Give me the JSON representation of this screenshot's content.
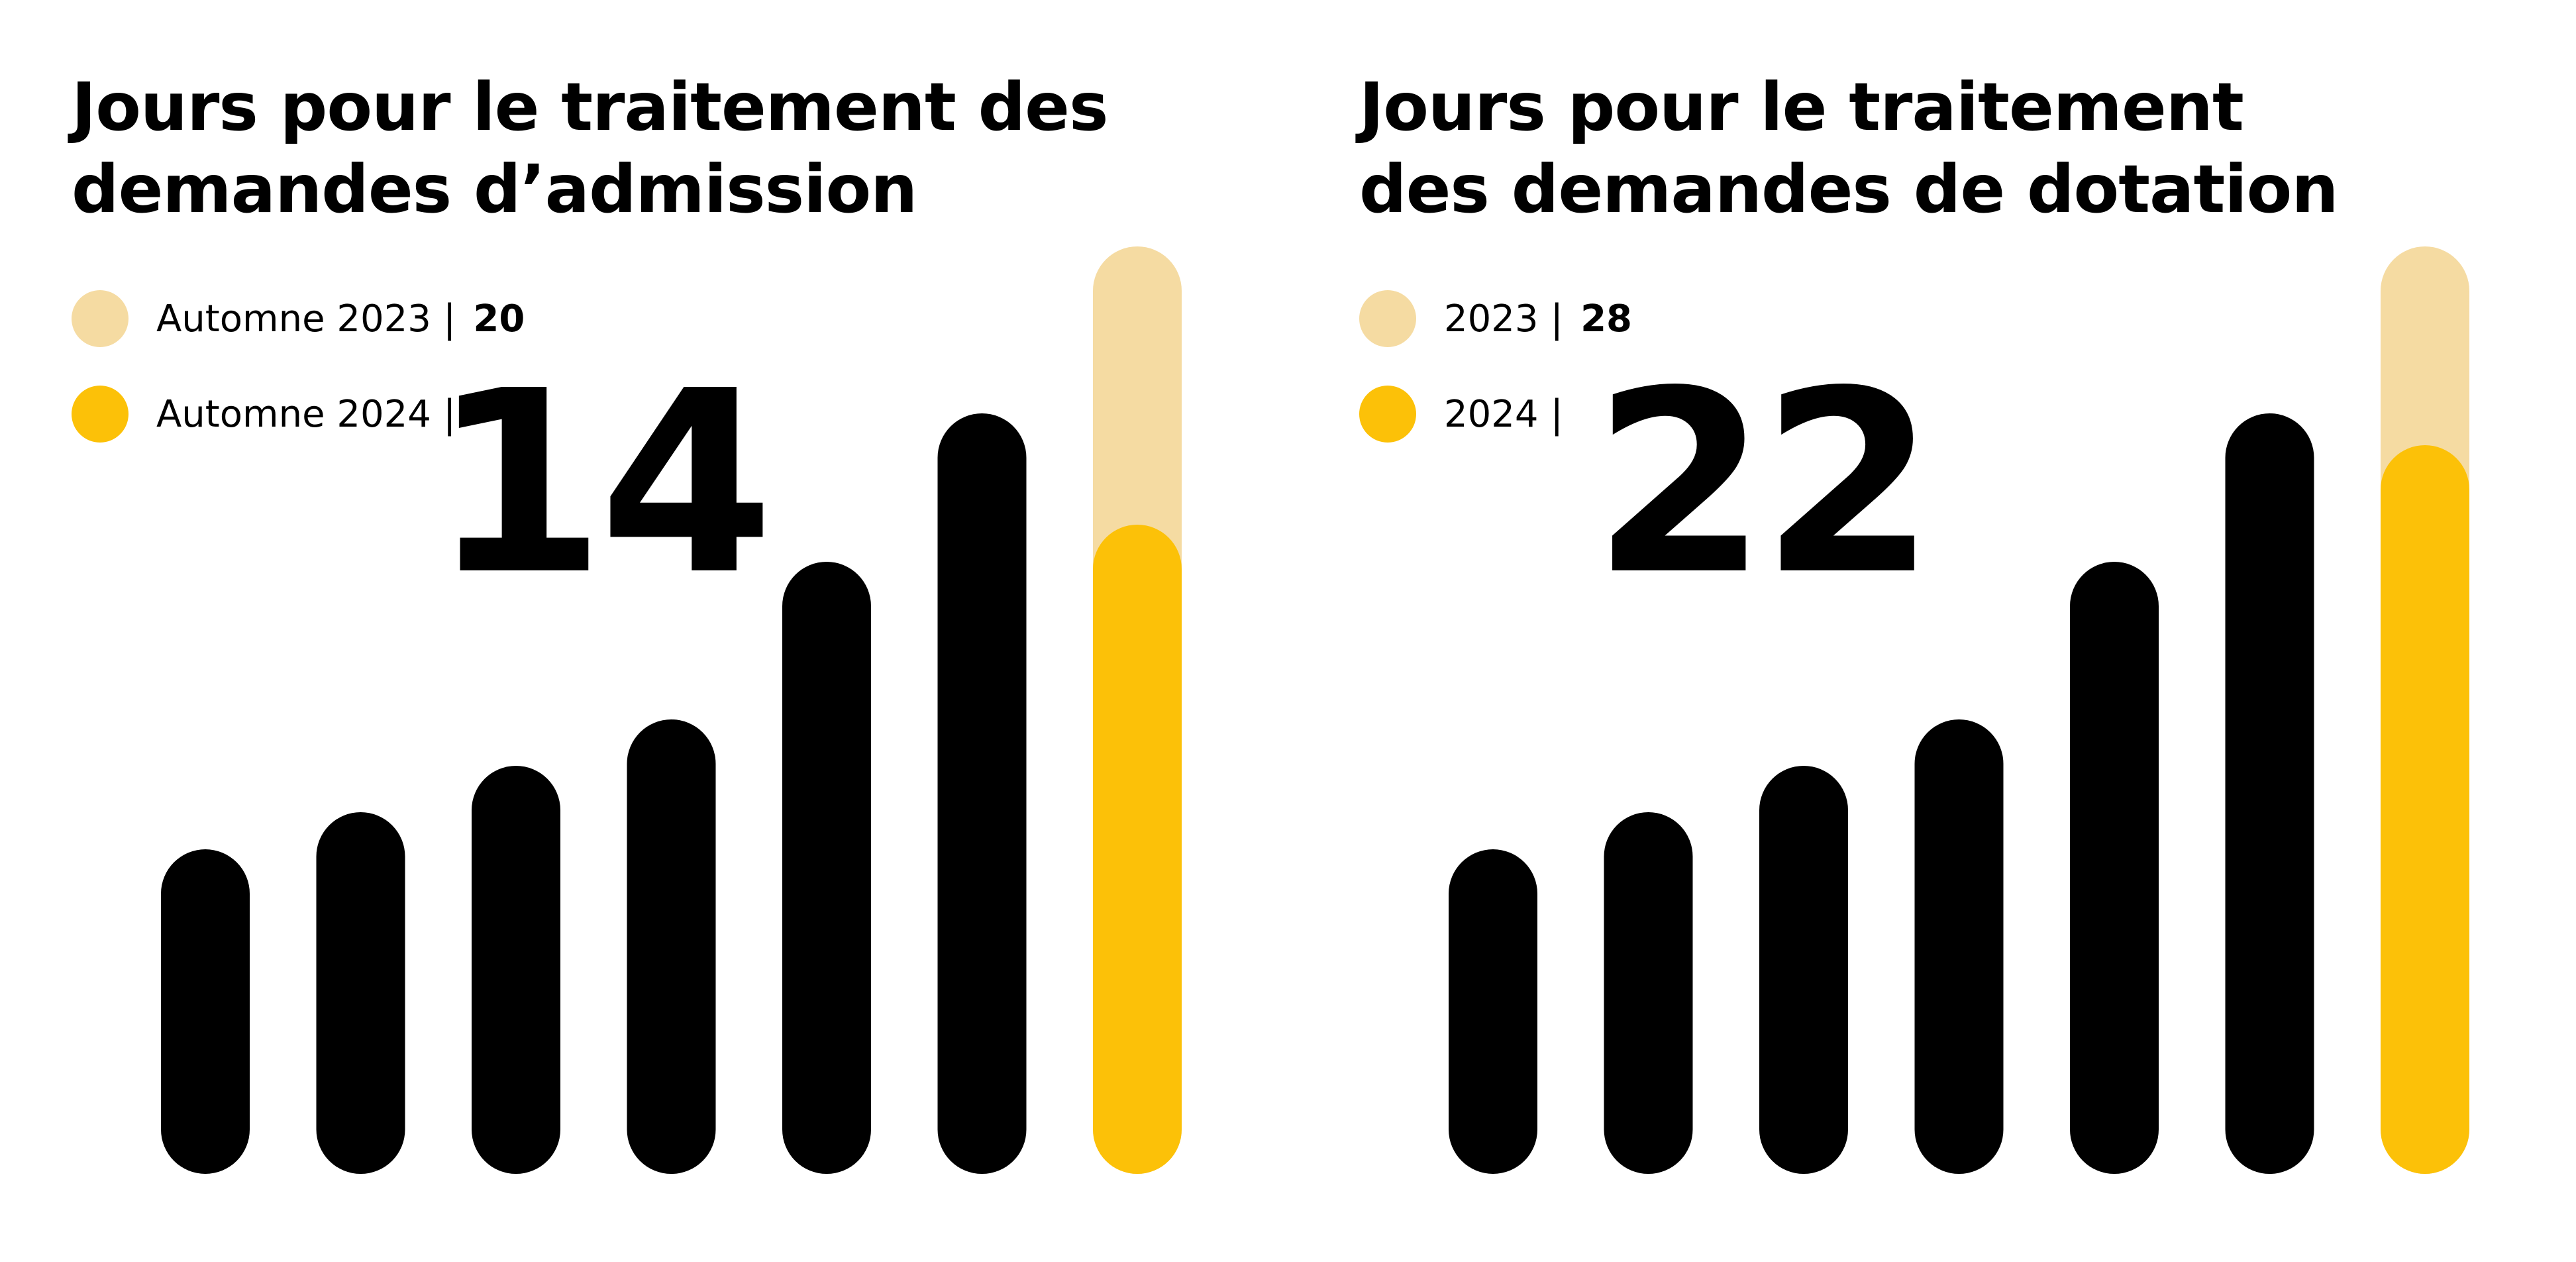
{
  "colors": {
    "bar": "#000000",
    "previous": "#f5dba2",
    "current": "#fcc108",
    "background": "#ffffff"
  },
  "panels": [
    {
      "title_line1": "Jours pour le traitement des",
      "title_line2": "demandes d’admission",
      "legend": [
        {
          "label": "Automne 2023",
          "separator": "|",
          "value": "20",
          "swatch": "previous"
        },
        {
          "label": "Automne 2024",
          "separator": "|",
          "value": "14",
          "swatch": "current"
        }
      ]
    },
    {
      "title_line1": "Jours pour le traitement",
      "title_line2": "des demandes de dotation",
      "legend": [
        {
          "label": "2023",
          "separator": "|",
          "value": "28",
          "swatch": "previous"
        },
        {
          "label": "2024",
          "separator": "|",
          "value": "22",
          "swatch": "current"
        }
      ]
    }
  ],
  "chart_data": [
    {
      "type": "bar",
      "title": "Jours pour le traitement des demandes d’admission",
      "series": [
        {
          "name": "Automne 2023",
          "values": [
            20
          ]
        },
        {
          "name": "Automne 2024",
          "values": [
            14
          ]
        }
      ],
      "decorative_bars_relative": [
        0.35,
        0.39,
        0.44,
        0.49,
        0.66,
        0.82
      ],
      "ylim": [
        0,
        20
      ]
    },
    {
      "type": "bar",
      "title": "Jours pour le traitement des demandes de dotation",
      "series": [
        {
          "name": "2023",
          "values": [
            28
          ]
        },
        {
          "name": "2024",
          "values": [
            22
          ]
        }
      ],
      "decorative_bars_relative": [
        0.35,
        0.39,
        0.44,
        0.49,
        0.66,
        0.82
      ],
      "ylim": [
        0,
        28
      ]
    }
  ]
}
